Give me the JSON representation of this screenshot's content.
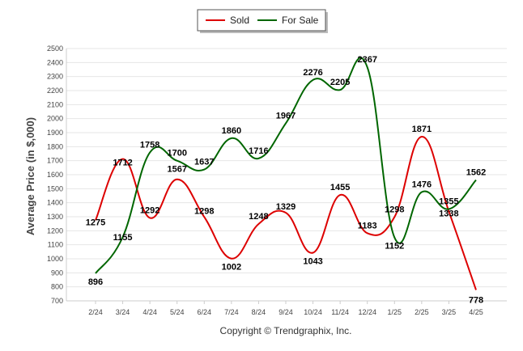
{
  "chart_data": {
    "type": "line",
    "categories": [
      "2/24",
      "3/24",
      "4/24",
      "5/24",
      "6/24",
      "7/24",
      "8/24",
      "9/24",
      "10/24",
      "11/24",
      "12/24",
      "1/25",
      "2/25",
      "3/25",
      "4/25"
    ],
    "series": [
      {
        "name": "Sold",
        "color": "#dd0000",
        "values": [
          1275,
          1712,
          1292,
          1567,
          1298,
          1002,
          1248,
          1329,
          1043,
          1455,
          1183,
          1298,
          1871,
          1338,
          778
        ]
      },
      {
        "name": "For Sale",
        "color": "#006600",
        "values": [
          896,
          1155,
          1758,
          1700,
          1637,
          1860,
          1716,
          1967,
          2276,
          2205,
          2367,
          1152,
          1476,
          1355,
          1562
        ]
      }
    ],
    "ylabel": "Average Price (in $,000)",
    "xlabel": "",
    "ylim": [
      700,
      2500
    ],
    "yticks": [
      700,
      800,
      900,
      1000,
      1100,
      1200,
      1300,
      1400,
      1500,
      1600,
      1700,
      1800,
      1900,
      2000,
      2100,
      2200,
      2300,
      2400,
      2500
    ],
    "grid": true,
    "legend_position": "top-center"
  },
  "footer": {
    "copyright": "Copyright © Trendgraphix, Inc."
  }
}
